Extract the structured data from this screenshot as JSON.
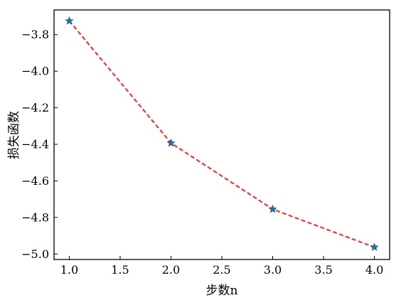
{
  "chart_data": {
    "type": "line",
    "xlabel": "步数n",
    "ylabel": "损失函数",
    "xlim": [
      0.85,
      4.15
    ],
    "ylim": [
      -5.03,
      -3.665
    ],
    "xticks": [
      1.0,
      1.5,
      2.0,
      2.5,
      3.0,
      3.5,
      4.0
    ],
    "xtick_labels": [
      "1.0",
      "1.5",
      "2.0",
      "2.5",
      "3.0",
      "3.5",
      "4.0"
    ],
    "yticks": [
      -3.8,
      -4.0,
      -4.2,
      -4.4,
      -4.6,
      -4.8,
      -5.0
    ],
    "ytick_labels": [
      "−3.8",
      "−4.0",
      "−4.2",
      "−4.4",
      "−4.6",
      "−4.8",
      "−5.0"
    ],
    "grid": false,
    "series": [
      {
        "x": [
          1.0,
          2.0,
          3.0,
          4.0
        ],
        "y": [
          -3.725,
          -4.393,
          -4.755,
          -4.963
        ],
        "line_color": "#e8383d",
        "line_style": "dashed",
        "marker": "star",
        "marker_color": "#1f77b4"
      }
    ]
  }
}
